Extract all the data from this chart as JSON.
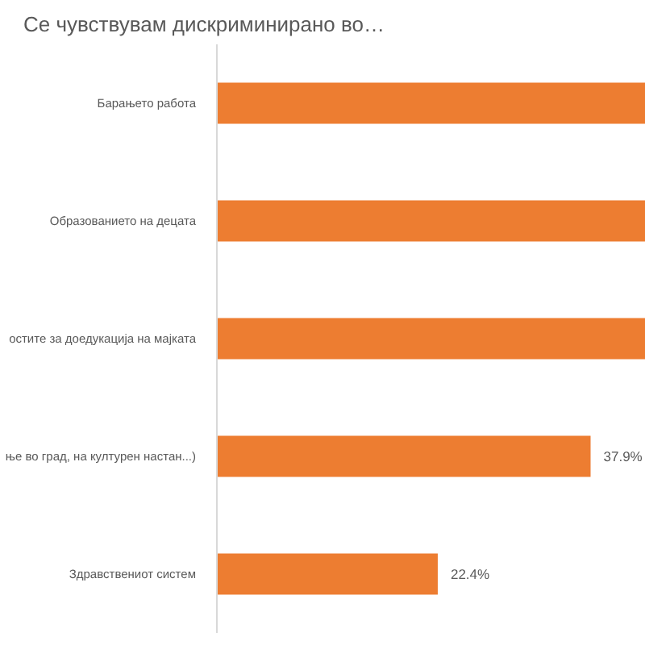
{
  "chart_data": {
    "type": "bar",
    "orientation": "horizontal",
    "title": "Се чувствувам дискриминирано во…",
    "categories": [
      "Барањето работа",
      "Образованието на децата",
      "остите за доедукација на мајката",
      "ње во град, на културен настан...)",
      "Здравствениот систем"
    ],
    "values": [
      43.5,
      43.5,
      43.5,
      37.9,
      22.4
    ],
    "value_labels": [
      null,
      null,
      null,
      "37.9%",
      "22.4%"
    ],
    "color": "#ed7d31",
    "xlim": [
      0,
      43.5
    ],
    "tick_labels": "y"
  }
}
